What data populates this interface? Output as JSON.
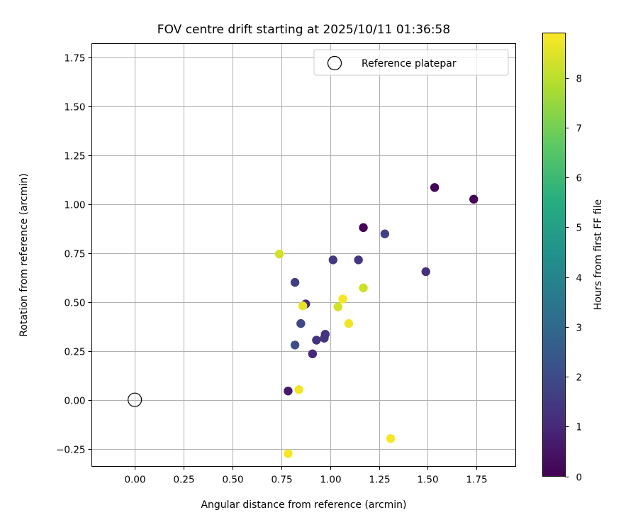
{
  "chart_data": {
    "type": "scatter",
    "title": "FOV centre drift starting at 2025/10/11 01:36:58",
    "xlabel": "Angular distance from reference (arcmin)",
    "ylabel": "Rotation from reference (arcmin)",
    "xlim": [
      -0.22,
      1.95
    ],
    "ylim": [
      -0.34,
      1.82
    ],
    "xticks": [
      0.0,
      0.25,
      0.5,
      0.75,
      1.0,
      1.25,
      1.5,
      1.75
    ],
    "xtick_labels": [
      "0.00",
      "0.25",
      "0.50",
      "0.75",
      "1.00",
      "1.25",
      "1.50",
      "1.75"
    ],
    "yticks": [
      -0.25,
      0.0,
      0.25,
      0.5,
      0.75,
      1.0,
      1.25,
      1.5,
      1.75
    ],
    "ytick_labels": [
      "−0.25",
      "0.00",
      "0.25",
      "0.50",
      "0.75",
      "1.00",
      "1.25",
      "1.50",
      "1.75"
    ],
    "grid": true,
    "legend": {
      "position": "upper-right",
      "entries": [
        "Reference platepar"
      ]
    },
    "reference_point": {
      "x": 0.0,
      "y": 0.0,
      "label": "Reference platepar"
    },
    "colorbar": {
      "label": "Hours from first FF file",
      "range": [
        0,
        8.9
      ],
      "ticks": [
        0,
        1,
        2,
        3,
        4,
        5,
        6,
        7,
        8
      ],
      "tick_labels": [
        "0",
        "1",
        "2",
        "3",
        "4",
        "5",
        "6",
        "7",
        "8"
      ],
      "colormap": "viridis"
    },
    "points": [
      {
        "x": 1.17,
        "y": 0.88,
        "hours": 0.1
      },
      {
        "x": 1.535,
        "y": 1.085,
        "hours": 0.1
      },
      {
        "x": 1.735,
        "y": 1.025,
        "hours": 0.1
      },
      {
        "x": 0.785,
        "y": 0.045,
        "hours": 0.6
      },
      {
        "x": 1.49,
        "y": 0.655,
        "hours": 1.2
      },
      {
        "x": 0.91,
        "y": 0.235,
        "hours": 1.0
      },
      {
        "x": 0.875,
        "y": 0.49,
        "hours": 1.0
      },
      {
        "x": 0.93,
        "y": 0.305,
        "hours": 1.3
      },
      {
        "x": 0.97,
        "y": 0.315,
        "hours": 1.3
      },
      {
        "x": 0.975,
        "y": 0.335,
        "hours": 1.3
      },
      {
        "x": 1.145,
        "y": 0.715,
        "hours": 1.4
      },
      {
        "x": 1.015,
        "y": 0.715,
        "hours": 1.5
      },
      {
        "x": 0.82,
        "y": 0.6,
        "hours": 1.6
      },
      {
        "x": 1.28,
        "y": 0.848,
        "hours": 1.7
      },
      {
        "x": 0.85,
        "y": 0.39,
        "hours": 1.9
      },
      {
        "x": 0.82,
        "y": 0.28,
        "hours": 2.1
      },
      {
        "x": 0.74,
        "y": 0.745,
        "hours": 8.3
      },
      {
        "x": 0.86,
        "y": 0.48,
        "hours": 8.6
      },
      {
        "x": 1.04,
        "y": 0.475,
        "hours": 8.3
      },
      {
        "x": 1.065,
        "y": 0.515,
        "hours": 8.8
      },
      {
        "x": 1.17,
        "y": 0.572,
        "hours": 8.2
      },
      {
        "x": 1.095,
        "y": 0.39,
        "hours": 8.7
      },
      {
        "x": 0.84,
        "y": 0.052,
        "hours": 8.7
      },
      {
        "x": 0.785,
        "y": -0.275,
        "hours": 8.8
      },
      {
        "x": 1.31,
        "y": -0.198,
        "hours": 8.8
      }
    ]
  }
}
